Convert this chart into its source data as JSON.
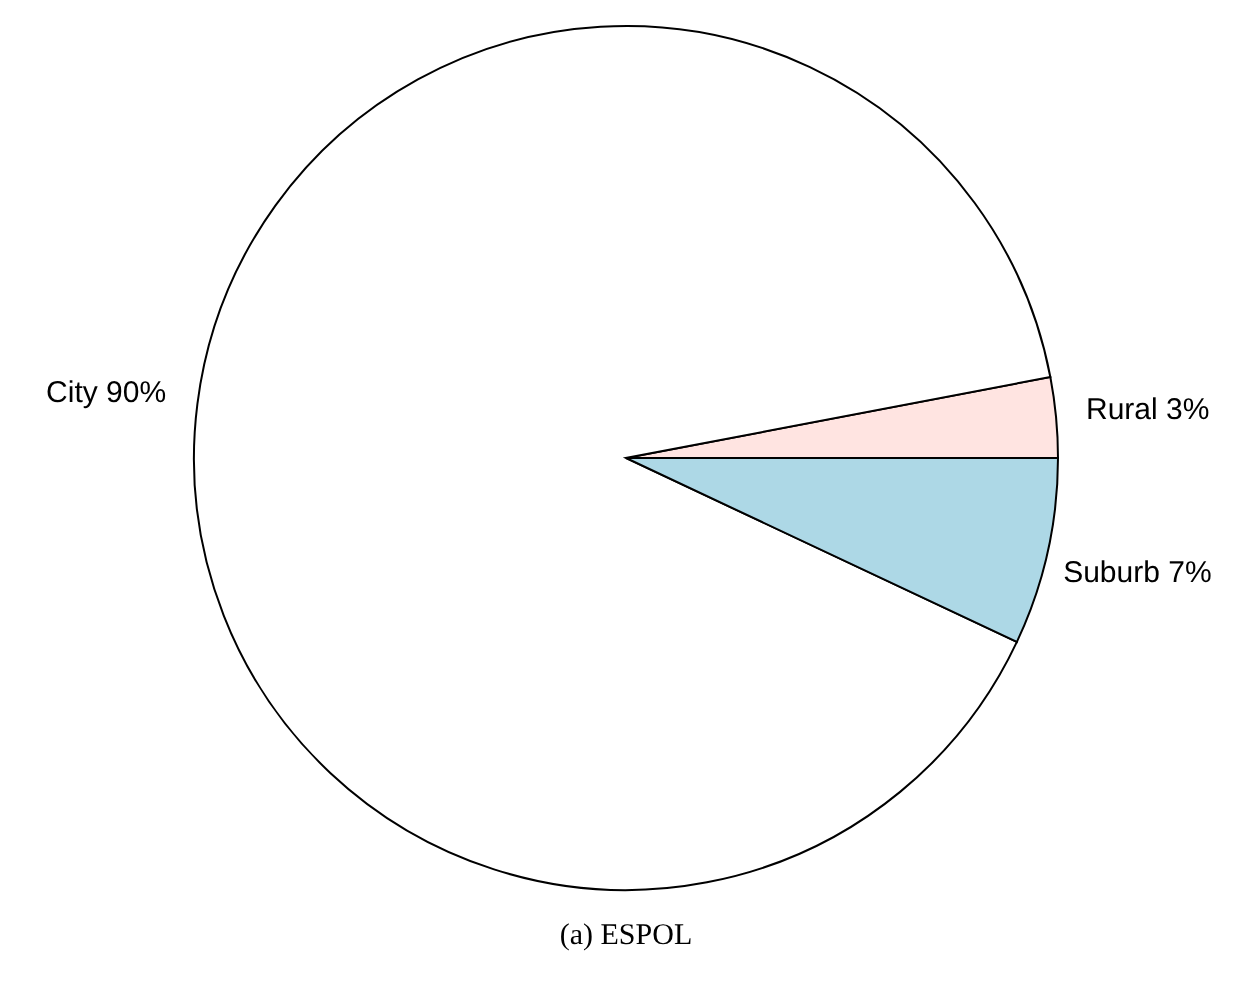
{
  "chart_data": {
    "type": "pie",
    "title": "(a) ESPOL",
    "categories": [
      "Rural",
      "City",
      "Suburb"
    ],
    "values": [
      3,
      90,
      7
    ],
    "value_labels": [
      "3%",
      "90%",
      "7%"
    ],
    "colors": [
      "#ffe4e1",
      "#ffffff",
      "#add8e6"
    ]
  }
}
